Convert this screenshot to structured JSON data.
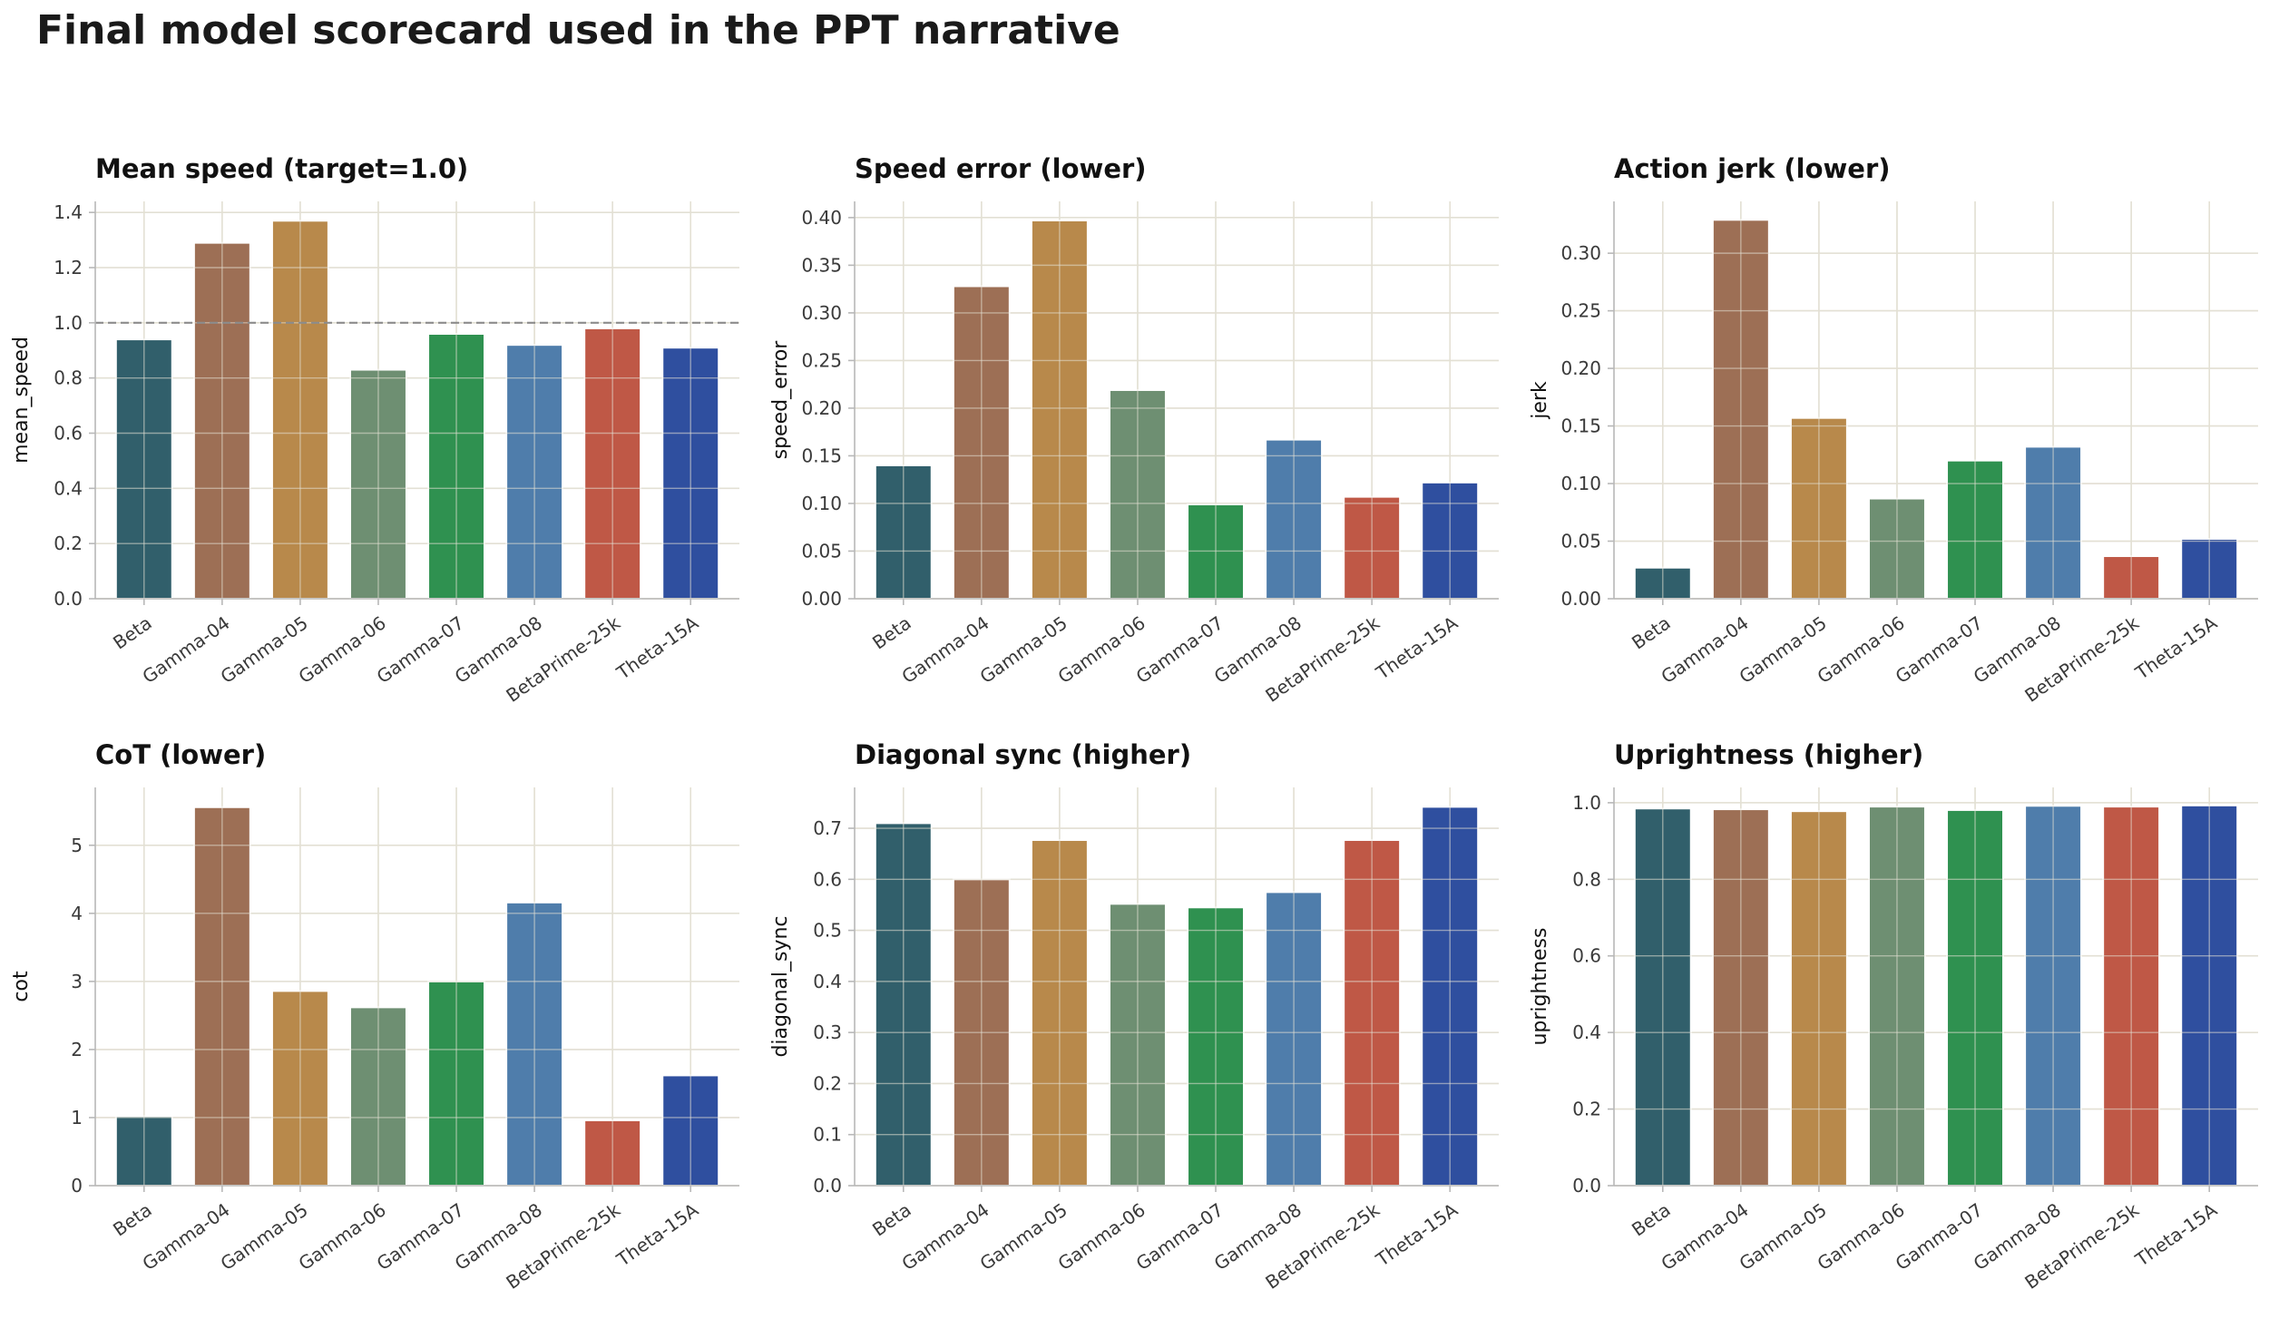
{
  "figure_title": "Final model scorecard used in the PPT narrative",
  "colors": {
    "grid": "#e3e0d4",
    "axis": "#b8b8b8",
    "tick_text": "#3a3a3a",
    "title_text": "#111111",
    "reference_line": "#8c8c8c",
    "bar_edge": "#ffffff"
  },
  "chart_data": [
    {
      "type": "bar",
      "title": "Mean speed (target=1.0)",
      "ylabel": "mean_speed",
      "xlabel": "",
      "categories": [
        "Beta",
        "Gamma-04",
        "Gamma-05",
        "Gamma-06",
        "Gamma-07",
        "Gamma-08",
        "BetaPrime-25k",
        "Theta-15A"
      ],
      "values": [
        0.94,
        1.29,
        1.37,
        0.83,
        0.96,
        0.92,
        0.98,
        0.91
      ],
      "colors": [
        "#315f6b",
        "#9d6f55",
        "#b8894b",
        "#6e8f72",
        "#2f9150",
        "#4f7dab",
        "#bf5846",
        "#2f4f9f"
      ],
      "ylim": [
        0,
        1.44
      ],
      "yticks": [
        0,
        0.2,
        0.4,
        0.6,
        0.8,
        1.0,
        1.2,
        1.4
      ],
      "ytick_labels": [
        "0.0",
        "0.2",
        "0.4",
        "0.6",
        "0.8",
        "1.0",
        "1.2",
        "1.4"
      ],
      "reference_line": 1.0,
      "grid": true
    },
    {
      "type": "bar",
      "title": "Speed error (lower)",
      "ylabel": "speed_error",
      "xlabel": "",
      "categories": [
        "Beta",
        "Gamma-04",
        "Gamma-05",
        "Gamma-06",
        "Gamma-07",
        "Gamma-08",
        "BetaPrime-25k",
        "Theta-15A"
      ],
      "values": [
        0.14,
        0.328,
        0.397,
        0.219,
        0.099,
        0.167,
        0.107,
        0.122
      ],
      "colors": [
        "#315f6b",
        "#9d6f55",
        "#b8894b",
        "#6e8f72",
        "#2f9150",
        "#4f7dab",
        "#bf5846",
        "#2f4f9f"
      ],
      "ylim": [
        0,
        0.417
      ],
      "yticks": [
        0,
        0.05,
        0.1,
        0.15,
        0.2,
        0.25,
        0.3,
        0.35,
        0.4
      ],
      "ytick_labels": [
        "0.00",
        "0.05",
        "0.10",
        "0.15",
        "0.20",
        "0.25",
        "0.30",
        "0.35",
        "0.40"
      ],
      "grid": true
    },
    {
      "type": "bar",
      "title": "Action jerk (lower)",
      "ylabel": "jerk",
      "xlabel": "",
      "categories": [
        "Beta",
        "Gamma-04",
        "Gamma-05",
        "Gamma-06",
        "Gamma-07",
        "Gamma-08",
        "BetaPrime-25k",
        "Theta-15A"
      ],
      "values": [
        0.027,
        0.329,
        0.157,
        0.087,
        0.12,
        0.132,
        0.037,
        0.052
      ],
      "colors": [
        "#315f6b",
        "#9d6f55",
        "#b8894b",
        "#6e8f72",
        "#2f9150",
        "#4f7dab",
        "#bf5846",
        "#2f4f9f"
      ],
      "ylim": [
        0,
        0.345
      ],
      "yticks": [
        0,
        0.05,
        0.1,
        0.15,
        0.2,
        0.25,
        0.3
      ],
      "ytick_labels": [
        "0.00",
        "0.05",
        "0.10",
        "0.15",
        "0.20",
        "0.25",
        "0.30"
      ],
      "grid": true
    },
    {
      "type": "bar",
      "title": "CoT (lower)",
      "ylabel": "cot",
      "xlabel": "",
      "categories": [
        "Beta",
        "Gamma-04",
        "Gamma-05",
        "Gamma-06",
        "Gamma-07",
        "Gamma-08",
        "BetaPrime-25k",
        "Theta-15A"
      ],
      "values": [
        1.02,
        5.56,
        2.86,
        2.62,
        3.0,
        4.16,
        0.96,
        1.62
      ],
      "colors": [
        "#315f6b",
        "#9d6f55",
        "#b8894b",
        "#6e8f72",
        "#2f9150",
        "#4f7dab",
        "#bf5846",
        "#2f4f9f"
      ],
      "ylim": [
        0,
        5.85
      ],
      "yticks": [
        0,
        1,
        2,
        3,
        4,
        5
      ],
      "ytick_labels": [
        "0",
        "1",
        "2",
        "3",
        "4",
        "5"
      ],
      "grid": true
    },
    {
      "type": "bar",
      "title": "Diagonal sync (higher)",
      "ylabel": "diagonal_sync",
      "xlabel": "",
      "categories": [
        "Beta",
        "Gamma-04",
        "Gamma-05",
        "Gamma-06",
        "Gamma-07",
        "Gamma-08",
        "BetaPrime-25k",
        "Theta-15A"
      ],
      "values": [
        0.71,
        0.6,
        0.677,
        0.552,
        0.545,
        0.575,
        0.677,
        0.742
      ],
      "colors": [
        "#315f6b",
        "#9d6f55",
        "#b8894b",
        "#6e8f72",
        "#2f9150",
        "#4f7dab",
        "#bf5846",
        "#2f4f9f"
      ],
      "ylim": [
        0,
        0.78
      ],
      "yticks": [
        0,
        0.1,
        0.2,
        0.3,
        0.4,
        0.5,
        0.6,
        0.7
      ],
      "ytick_labels": [
        "0.0",
        "0.1",
        "0.2",
        "0.3",
        "0.4",
        "0.5",
        "0.6",
        "0.7"
      ],
      "grid": true
    },
    {
      "type": "bar",
      "title": "Uprightness (higher)",
      "ylabel": "uprightness",
      "xlabel": "",
      "categories": [
        "Beta",
        "Gamma-04",
        "Gamma-05",
        "Gamma-06",
        "Gamma-07",
        "Gamma-08",
        "BetaPrime-25k",
        "Theta-15A"
      ],
      "values": [
        0.985,
        0.983,
        0.978,
        0.99,
        0.981,
        0.992,
        0.99,
        0.993
      ],
      "colors": [
        "#315f6b",
        "#9d6f55",
        "#b8894b",
        "#6e8f72",
        "#2f9150",
        "#4f7dab",
        "#bf5846",
        "#2f4f9f"
      ],
      "ylim": [
        0,
        1.04
      ],
      "yticks": [
        0,
        0.2,
        0.4,
        0.6,
        0.8,
        1.0
      ],
      "ytick_labels": [
        "0.0",
        "0.2",
        "0.4",
        "0.6",
        "0.8",
        "1.0"
      ],
      "grid": true
    }
  ]
}
